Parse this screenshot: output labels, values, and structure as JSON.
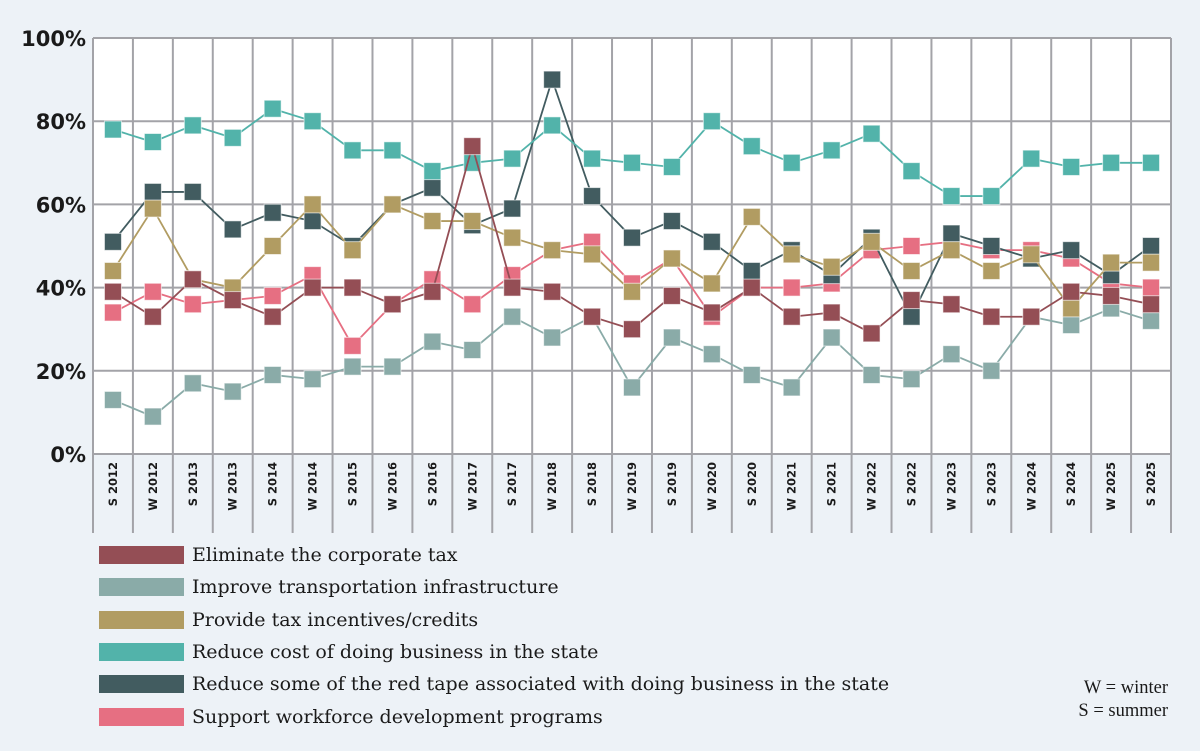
{
  "chart_data": {
    "type": "line",
    "title": "",
    "xlabel": "",
    "ylabel": "",
    "ylim": [
      0,
      100
    ],
    "yticks": [
      "0%",
      "20%",
      "40%",
      "60%",
      "80%",
      "100%"
    ],
    "grid": true,
    "legend_position": "bottom",
    "categories": [
      "S 2012",
      "W 2012",
      "S 2013",
      "W 2013",
      "S 2014",
      "W 2014",
      "S 2015",
      "W 2016",
      "S 2016",
      "W 2017",
      "S 2017",
      "W 2018",
      "S 2018",
      "W 2019",
      "S 2019",
      "W 2020",
      "S 2020",
      "W 2021",
      "S 2021",
      "W 2022",
      "S 2022",
      "W 2023",
      "S 2023",
      "W 2024",
      "S 2024",
      "W 2025",
      "S 2025"
    ],
    "series": [
      {
        "name": "Eliminate the corporate tax",
        "color": "#944e55",
        "values": [
          39,
          33,
          42,
          37,
          33,
          40,
          40,
          36,
          39,
          74,
          40,
          39,
          33,
          30,
          38,
          34,
          40,
          33,
          34,
          29,
          37,
          36,
          33,
          33,
          39,
          38,
          36
        ]
      },
      {
        "name": "Improve transportation infrastructure",
        "color": "#8aaba8",
        "values": [
          13,
          9,
          17,
          15,
          19,
          18,
          21,
          21,
          27,
          25,
          33,
          28,
          33,
          16,
          28,
          24,
          19,
          16,
          28,
          19,
          18,
          24,
          20,
          33,
          31,
          35,
          32
        ]
      },
      {
        "name": "Provide tax incentives/credits",
        "color": "#b19c62",
        "values": [
          44,
          59,
          42,
          40,
          50,
          60,
          49,
          60,
          56,
          56,
          52,
          49,
          48,
          39,
          47,
          41,
          57,
          48,
          45,
          51,
          44,
          49,
          44,
          48,
          35,
          46,
          46
        ]
      },
      {
        "name": "Reduce cost of doing business in the state",
        "color": "#52b3aa",
        "values": [
          78,
          75,
          79,
          76,
          83,
          80,
          73,
          73,
          68,
          70,
          71,
          79,
          71,
          70,
          69,
          80,
          74,
          70,
          73,
          77,
          68,
          62,
          62,
          71,
          69,
          70,
          70
        ]
      },
      {
        "name": "Reduce some of the red tape associated with doing business in the state",
        "color": "#425c60",
        "values": [
          51,
          63,
          63,
          54,
          58,
          56,
          50,
          60,
          64,
          55,
          59,
          90,
          62,
          52,
          56,
          51,
          44,
          49,
          43,
          52,
          33,
          53,
          50,
          47,
          49,
          43,
          50
        ]
      },
      {
        "name": "Support workforce development programs",
        "color": "#e66f82",
        "values": [
          34,
          39,
          36,
          37,
          38,
          43,
          26,
          36,
          42,
          36,
          43,
          49,
          51,
          41,
          47,
          33,
          40,
          40,
          41,
          49,
          50,
          51,
          49,
          49,
          47,
          41,
          40
        ]
      }
    ],
    "note": [
      "W = winter",
      "S = summer"
    ]
  }
}
